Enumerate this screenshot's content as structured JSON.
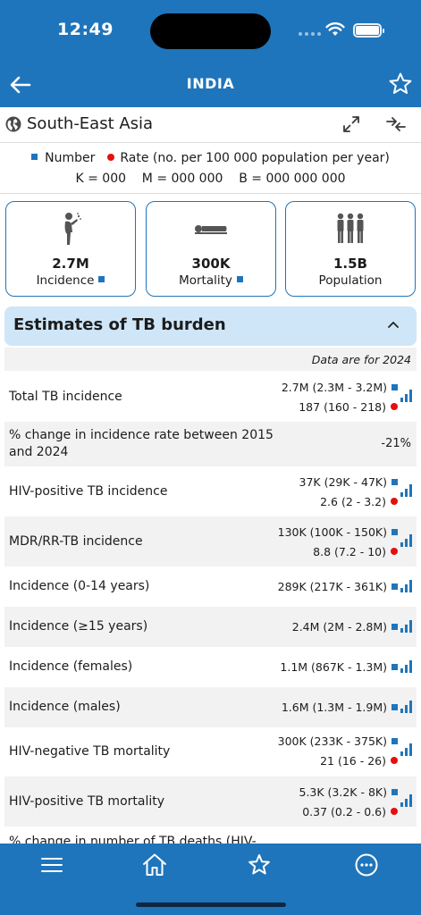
{
  "status_bar": {
    "time": "12:49"
  },
  "header": {
    "title": "INDIA"
  },
  "region": {
    "name": "South-East Asia"
  },
  "legend": {
    "number": "Number",
    "rate": "Rate (no. per 100 000 population per year)",
    "units": "K = 000    M = 000 000    B = 000 000 000"
  },
  "colors": {
    "brand": "#1f75bb",
    "rate_dot": "#e50f0f",
    "section_bg": "#cfe6f8",
    "row_alt": "#f2f2f2"
  },
  "cards": [
    {
      "icon": "coughing-person-icon",
      "value": "2.7M",
      "label": "Incidence",
      "marker": "number"
    },
    {
      "icon": "lying-person-icon",
      "value": "300K",
      "label": "Mortality",
      "marker": "number"
    },
    {
      "icon": "population-icon",
      "value": "1.5B",
      "label": "Population"
    }
  ],
  "section": {
    "title": "Estimates of TB burden",
    "data_note": "Data are for 2024"
  },
  "rows": [
    {
      "label": "Total TB incidence",
      "number": "2.7M (2.3M - 3.2M)",
      "rate": "187 (160 - 218)",
      "chart": true
    },
    {
      "label": "% change in incidence rate between 2015 and 2024",
      "value": "-21%",
      "chart": false
    },
    {
      "label": "HIV-positive TB incidence",
      "number": "37K (29K - 47K)",
      "rate": "2.6 (2 - 3.2)",
      "chart": true
    },
    {
      "label": "MDR/RR-TB incidence",
      "number": "130K (100K - 150K)",
      "rate": "8.8 (7.2 - 10)",
      "chart": true
    },
    {
      "label": "Incidence (0-14 years)",
      "number": "289K (217K - 361K)",
      "chart": true
    },
    {
      "label": "Incidence (≥15 years)",
      "number": "2.4M (2M - 2.8M)",
      "chart": true
    },
    {
      "label": "Incidence (females)",
      "number": "1.1M (867K - 1.3M)",
      "chart": true
    },
    {
      "label": "Incidence (males)",
      "number": "1.6M (1.3M - 1.9M)",
      "chart": true
    },
    {
      "label": "HIV-negative TB mortality",
      "number": "300K (233K - 375K)",
      "rate": "21 (16 - 26)",
      "chart": true
    },
    {
      "label": "HIV-positive TB mortality",
      "number": "5.3K (3.2K - 8K)",
      "rate": "0.37 (0.2 - 0.6)",
      "chart": true
    },
    {
      "label": "% change in number of TB deaths (HIV-"
    }
  ],
  "tab_bar": {
    "items": [
      "menu-icon",
      "home-icon",
      "favorites-icon",
      "more-icon"
    ]
  }
}
